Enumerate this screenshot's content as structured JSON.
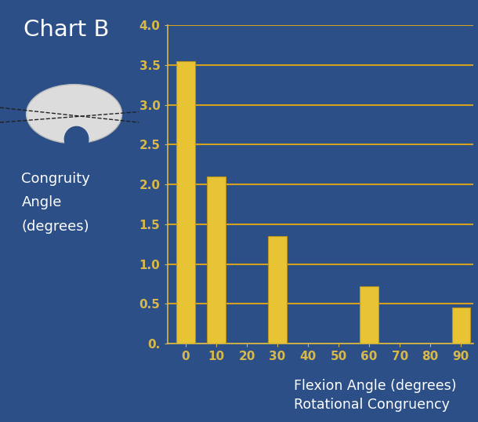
{
  "chart_data": {
    "type": "bar",
    "title": "Chart B",
    "ylabel": "Congruity\nAngle\n(degrees)",
    "xlabel": "Flexion Angle (degrees)",
    "subtitle": "Rotational Congruency",
    "x": [
      0,
      10,
      30,
      60,
      90
    ],
    "values": [
      3.55,
      2.1,
      1.35,
      0.72,
      0.45
    ],
    "color": "#e8c434",
    "xlim": [
      -6,
      94
    ],
    "xticks": [
      0,
      10,
      20,
      30,
      40,
      50,
      60,
      70,
      80,
      90
    ],
    "ylim": [
      0,
      4.0
    ],
    "yticks": [
      {
        "value": 0,
        "label": "0."
      },
      0.5,
      1.0,
      1.5,
      2.0,
      2.5,
      3.0,
      3.5,
      4.0
    ],
    "grid": true
  }
}
